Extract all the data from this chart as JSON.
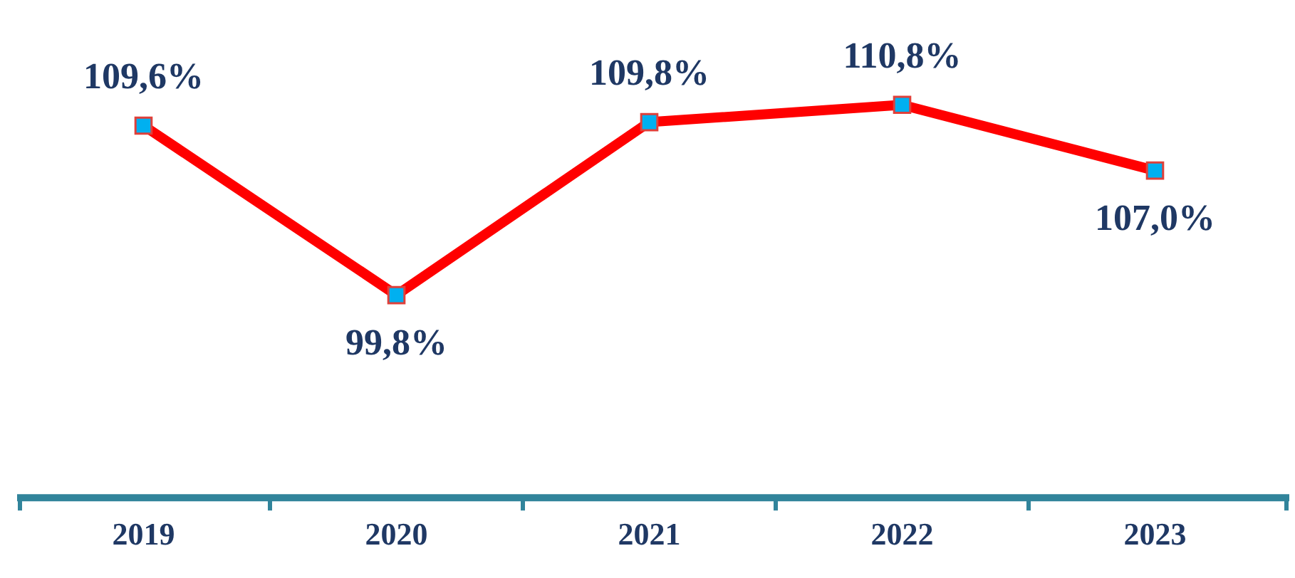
{
  "chart_data": {
    "type": "line",
    "categories": [
      "2019",
      "2020",
      "2021",
      "2022",
      "2023"
    ],
    "series": [
      {
        "color": "#ff0000",
        "values": [
          109.6,
          99.8,
          109.8,
          110.8,
          107.0
        ],
        "value_labels": [
          "109,6%",
          "99,8%",
          "109,8%",
          "110,8%",
          "107,0%"
        ]
      }
    ],
    "marker": "square",
    "line_style": "solid",
    "grid": false,
    "legend": false,
    "tick_labels": "x"
  }
}
